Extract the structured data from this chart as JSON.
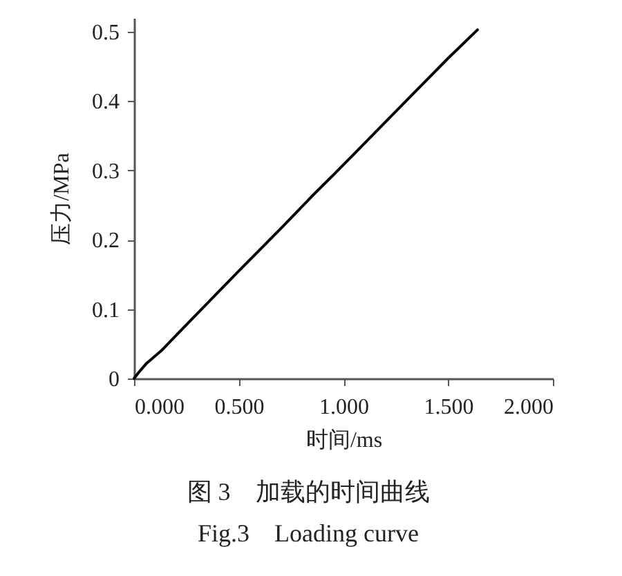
{
  "chart_data": {
    "type": "line",
    "xlabel": "时间/ms",
    "ylabel": "压力/MPa",
    "x": [
      0,
      0.02,
      0.06,
      0.13,
      0.2,
      0.3,
      0.5,
      0.7,
      0.86,
      0.95,
      1.1,
      1.35,
      1.5,
      1.64
    ],
    "series": [
      {
        "color": "#000000",
        "values": [
          0,
          0.008,
          0.022,
          0.04,
          0.062,
          0.093,
          0.155,
          0.216,
          0.266,
          0.293,
          0.339,
          0.416,
          0.462,
          0.503
        ]
      }
    ],
    "xlim": [
      0,
      2.0
    ],
    "xticks": [
      {
        "value": 0,
        "label": "0.000"
      },
      {
        "value": 0.5,
        "label": "0.500"
      },
      {
        "value": 1.0,
        "label": "1.000"
      },
      {
        "value": 1.5,
        "label": "1.500"
      },
      {
        "value": 2.0,
        "label": "2.000"
      }
    ],
    "ylim": [
      0,
      0.52
    ],
    "yticks": [
      0,
      0.1,
      0.2,
      0.3,
      0.4,
      0.5
    ],
    "grid": false,
    "annotations": [
      "图 3　加载的时间曲线",
      "Fig.3　Loading curve"
    ]
  }
}
